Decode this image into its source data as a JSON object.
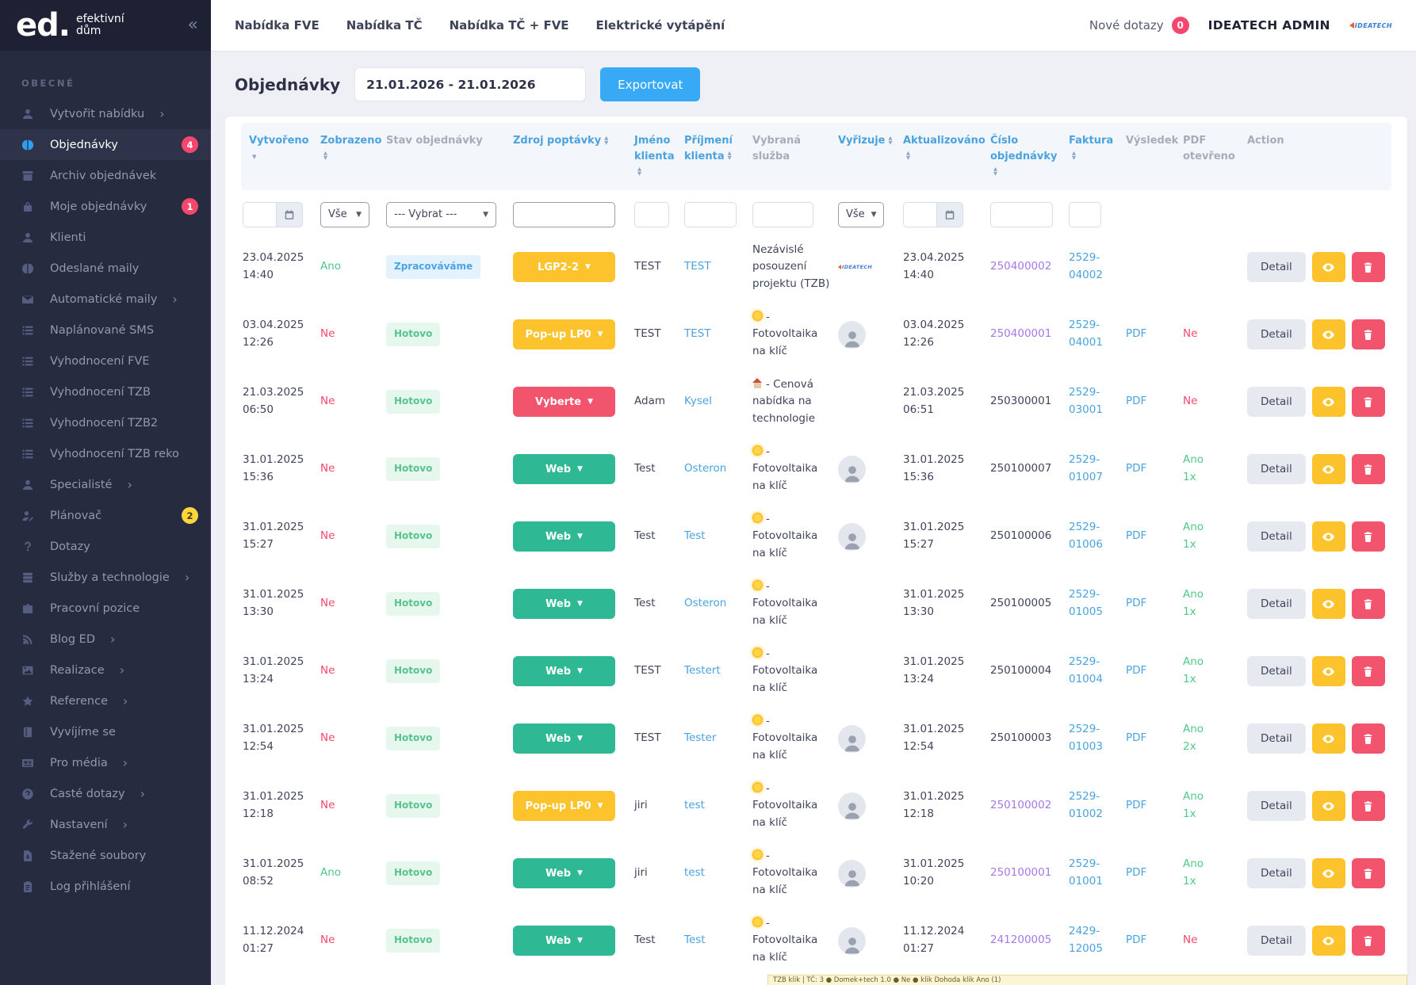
{
  "brand": {
    "logo_text": "ed.",
    "logo_sub1": "efektivní",
    "logo_sub2": "dům",
    "collapse_glyph": "«"
  },
  "colors": {
    "accent_blue": "#38a9f5",
    "link_blue": "#4aa3df",
    "purple_link": "#a478ea",
    "green": "#4fc88a",
    "red": "#f5476d",
    "yellow": "#fcc32d",
    "teal": "#2fb894",
    "sidebar_bg": "#272b3f",
    "badge_red": "#f5476d",
    "badge_yellow": "#ffd53e"
  },
  "sidebar": {
    "section_label": "OBECNÉ",
    "items": [
      {
        "label": "Vytvořit nabídku",
        "icon": "user-icon",
        "chevron": "›",
        "badge": "",
        "badge_class": "",
        "item_class": ""
      },
      {
        "label": "Objednávky",
        "icon": "orders-icon",
        "chevron": "",
        "badge": "4",
        "badge_class": "b-red",
        "item_class": "active"
      },
      {
        "label": "Archiv objednávek",
        "icon": "archive-icon",
        "chevron": "",
        "badge": "",
        "badge_class": "",
        "item_class": ""
      },
      {
        "label": "Moje objednávky",
        "icon": "bag-icon",
        "chevron": "",
        "badge": "1",
        "badge_class": "b-red",
        "item_class": ""
      },
      {
        "label": "Klienti",
        "icon": "user-icon",
        "chevron": "",
        "badge": "",
        "badge_class": "",
        "item_class": ""
      },
      {
        "label": "Odeslané maily",
        "icon": "orders-icon",
        "chevron": "",
        "badge": "",
        "badge_class": "",
        "item_class": ""
      },
      {
        "label": "Automatické maily",
        "icon": "envelope-icon",
        "chevron": "›",
        "badge": "",
        "badge_class": "",
        "item_class": ""
      },
      {
        "label": "Naplánované SMS",
        "icon": "list-icon",
        "chevron": "",
        "badge": "",
        "badge_class": "",
        "item_class": ""
      },
      {
        "label": "Vyhodnocení FVE",
        "icon": "list-icon",
        "chevron": "",
        "badge": "",
        "badge_class": "",
        "item_class": ""
      },
      {
        "label": "Vyhodnocení TZB",
        "icon": "list-icon",
        "chevron": "",
        "badge": "",
        "badge_class": "",
        "item_class": ""
      },
      {
        "label": "Vyhodnocení TZB2",
        "icon": "list-icon",
        "chevron": "",
        "badge": "",
        "badge_class": "",
        "item_class": ""
      },
      {
        "label": "Vyhodnocení TZB reko",
        "icon": "list-icon",
        "chevron": "",
        "badge": "",
        "badge_class": "",
        "item_class": ""
      },
      {
        "label": "Specialisté",
        "icon": "user-icon",
        "chevron": "›",
        "badge": "",
        "badge_class": "",
        "item_class": ""
      },
      {
        "label": "Plánovač",
        "icon": "user-edit-icon",
        "chevron": "",
        "badge": "2",
        "badge_class": "b-yellow",
        "item_class": ""
      },
      {
        "label": "Dotazy",
        "icon": "question-icon",
        "chevron": "",
        "badge": "",
        "badge_class": "",
        "item_class": ""
      },
      {
        "label": "Služby a technologie",
        "icon": "db-icon",
        "chevron": "›",
        "badge": "",
        "badge_class": "",
        "item_class": ""
      },
      {
        "label": "Pracovní pozice",
        "icon": "briefcase-icon",
        "chevron": "",
        "badge": "",
        "badge_class": "",
        "item_class": ""
      },
      {
        "label": "Blog ED",
        "icon": "blog-icon",
        "chevron": "›",
        "badge": "",
        "badge_class": "",
        "item_class": ""
      },
      {
        "label": "Realizace",
        "icon": "image-icon",
        "chevron": "›",
        "badge": "",
        "badge_class": "",
        "item_class": ""
      },
      {
        "label": "Reference",
        "icon": "star-icon",
        "chevron": "›",
        "badge": "",
        "badge_class": "",
        "item_class": ""
      },
      {
        "label": "Vyvíjíme se",
        "icon": "book-icon",
        "chevron": "",
        "badge": "",
        "badge_class": "",
        "item_class": ""
      },
      {
        "label": "Pro média",
        "icon": "news-icon",
        "chevron": "›",
        "badge": "",
        "badge_class": "",
        "item_class": ""
      },
      {
        "label": "Časté dotazy",
        "icon": "help-icon",
        "chevron": "›",
        "badge": "",
        "badge_class": "",
        "item_class": ""
      },
      {
        "label": "Nastavení",
        "icon": "wrench-icon",
        "chevron": "›",
        "badge": "",
        "badge_class": "",
        "item_class": ""
      },
      {
        "label": "Stažené soubory",
        "icon": "download-icon",
        "chevron": "",
        "badge": "",
        "badge_class": "",
        "item_class": ""
      },
      {
        "label": "Log přihlášení",
        "icon": "clipboard-icon",
        "chevron": "",
        "badge": "",
        "badge_class": "",
        "item_class": ""
      }
    ]
  },
  "topnav": {
    "tabs": [
      "Nabídka FVE",
      "Nabídka TČ",
      "Nabídka TČ + FVE",
      "Elektrické vytápění"
    ],
    "new_queries_label": "Nové dotazy",
    "new_queries_count": "0",
    "admin_label": "IDEATECH ADMIN",
    "brand_mark": "IDEATECH"
  },
  "toolbar": {
    "title": "Objednávky",
    "date_range": "21.01.2026 - 21.01.2026",
    "export_label": "Exportovat"
  },
  "table": {
    "columns": [
      {
        "label": "Vytvořeno",
        "head_class": "h-blue",
        "sort_class": "sort-desc"
      },
      {
        "label": "Zobrazeno",
        "head_class": "h-blue",
        "sort_class": "sort-both"
      },
      {
        "label": "Stav objednávky",
        "head_class": "h-gray",
        "sort_class": ""
      },
      {
        "label": "Zdroj poptávky",
        "head_class": "h-blue",
        "sort_class": "sort-both"
      },
      {
        "label": "Jméno klienta",
        "head_class": "h-blue",
        "sort_class": "sort-both"
      },
      {
        "label": "Příjmení klienta",
        "head_class": "h-blue",
        "sort_class": "sort-both"
      },
      {
        "label": "Vybraná služba",
        "head_class": "h-gray",
        "sort_class": ""
      },
      {
        "label": "Vyřizuje",
        "head_class": "h-blue",
        "sort_class": "sort-both"
      },
      {
        "label": "Aktualizováno",
        "head_class": "h-blue",
        "sort_class": "sort-both"
      },
      {
        "label": "Číslo objednávky",
        "head_class": "h-blue",
        "sort_class": "sort-both"
      },
      {
        "label": "Faktura",
        "head_class": "h-blue",
        "sort_class": "sort-both"
      },
      {
        "label": "Výsledek",
        "head_class": "h-gray",
        "sort_class": ""
      },
      {
        "label": "PDF otevřeno",
        "head_class": "h-gray",
        "sort_class": ""
      },
      {
        "label": "Action",
        "head_class": "h-gray",
        "sort_class": ""
      }
    ],
    "filters": {
      "zobrazeno": "Vše",
      "stav": "--- Vybrat ---",
      "vyrizuje": "Vše"
    },
    "vyrizuje_logo_text": "IDEATECH",
    "action_detail_label": "Detail",
    "rows": [
      {
        "vytvoreno": "23.04.2025 14:40",
        "zobrazeno": "Ano",
        "zobrazeno_class": "c-green",
        "stav": "Zpracováváme",
        "stav_class": "pill-blue",
        "zdroj": "LGP2-2",
        "zdroj_class": "btn-yellow",
        "jmeno": "TEST",
        "prijmeni": "TEST",
        "sluzba": "Nezávislé posouzení projektu (TZB)",
        "sluzba_icon_class": "",
        "vyrizuje_class": "vyrizuje-logo",
        "aktualizovano": "23.04.2025 14:40",
        "cislo": "250400002",
        "cislo_class": "c-purple",
        "faktura": "2529-04002",
        "pdf": "",
        "pdf_otevreno": "",
        "pdf_otevreno_class": ""
      },
      {
        "vytvoreno": "03.04.2025 12:26",
        "zobrazeno": "Ne",
        "zobrazeno_class": "c-red",
        "stav": "Hotovo",
        "stav_class": "pill-green",
        "zdroj": "Pop-up LP0",
        "zdroj_class": "btn-yellow",
        "jmeno": "TEST",
        "prijmeni": "TEST",
        "sluzba": "- Fotovoltaika na klíč",
        "sluzba_icon_class": "icon-sun",
        "vyrizuje_class": "vyrizuje-avatar",
        "aktualizovano": "03.04.2025 12:26",
        "cislo": "250400001",
        "cislo_class": "c-purple",
        "faktura": "2529-04001",
        "pdf": "PDF",
        "pdf_otevreno": "Ne",
        "pdf_otevreno_class": "c-red"
      },
      {
        "vytvoreno": "21.03.2025 06:50",
        "zobrazeno": "Ne",
        "zobrazeno_class": "c-red",
        "stav": "Hotovo",
        "stav_class": "pill-green",
        "zdroj": "Vyberte",
        "zdroj_class": "btn-red",
        "jmeno": "Adam",
        "prijmeni": "Kysel",
        "sluzba": "- Cenová nabídka na technologie",
        "sluzba_icon_class": "icon-house",
        "vyrizuje_class": "",
        "aktualizovano": "21.03.2025 06:51",
        "cislo": "250300001",
        "cislo_class": "",
        "faktura": "2529-03001",
        "pdf": "PDF",
        "pdf_otevreno": "Ne",
        "pdf_otevreno_class": "c-red"
      },
      {
        "vytvoreno": "31.01.2025 15:36",
        "zobrazeno": "Ne",
        "zobrazeno_class": "c-red",
        "stav": "Hotovo",
        "stav_class": "pill-green",
        "zdroj": "Web",
        "zdroj_class": "btn-green",
        "jmeno": "Test",
        "prijmeni": "Osteron",
        "sluzba": "- Fotovoltaika na klíč",
        "sluzba_icon_class": "icon-sun",
        "vyrizuje_class": "vyrizuje-avatar",
        "aktualizovano": "31.01.2025 15:36",
        "cislo": "250100007",
        "cislo_class": "",
        "faktura": "2529-01007",
        "pdf": "PDF",
        "pdf_otevreno": "Ano 1x",
        "pdf_otevreno_class": "c-green"
      },
      {
        "vytvoreno": "31.01.2025 15:27",
        "zobrazeno": "Ne",
        "zobrazeno_class": "c-red",
        "stav": "Hotovo",
        "stav_class": "pill-green",
        "zdroj": "Web",
        "zdroj_class": "btn-green",
        "jmeno": "Test",
        "prijmeni": "Test",
        "sluzba": "- Fotovoltaika na klíč",
        "sluzba_icon_class": "icon-sun",
        "vyrizuje_class": "vyrizuje-avatar",
        "aktualizovano": "31.01.2025 15:27",
        "cislo": "250100006",
        "cislo_class": "",
        "faktura": "2529-01006",
        "pdf": "PDF",
        "pdf_otevreno": "Ano 1x",
        "pdf_otevreno_class": "c-green"
      },
      {
        "vytvoreno": "31.01.2025 13:30",
        "zobrazeno": "Ne",
        "zobrazeno_class": "c-red",
        "stav": "Hotovo",
        "stav_class": "pill-green",
        "zdroj": "Web",
        "zdroj_class": "btn-green",
        "jmeno": "Test",
        "prijmeni": "Osteron",
        "sluzba": "- Fotovoltaika na klíč",
        "sluzba_icon_class": "icon-sun",
        "vyrizuje_class": "",
        "aktualizovano": "31.01.2025 13:30",
        "cislo": "250100005",
        "cislo_class": "",
        "faktura": "2529-01005",
        "pdf": "PDF",
        "pdf_otevreno": "Ano 1x",
        "pdf_otevreno_class": "c-green"
      },
      {
        "vytvoreno": "31.01.2025 13:24",
        "zobrazeno": "Ne",
        "zobrazeno_class": "c-red",
        "stav": "Hotovo",
        "stav_class": "pill-green",
        "zdroj": "Web",
        "zdroj_class": "btn-green",
        "jmeno": "TEST",
        "prijmeni": "Testert",
        "sluzba": "- Fotovoltaika na klíč",
        "sluzba_icon_class": "icon-sun",
        "vyrizuje_class": "",
        "aktualizovano": "31.01.2025 13:24",
        "cislo": "250100004",
        "cislo_class": "",
        "faktura": "2529-01004",
        "pdf": "PDF",
        "pdf_otevreno": "Ano 1x",
        "pdf_otevreno_class": "c-green"
      },
      {
        "vytvoreno": "31.01.2025 12:54",
        "zobrazeno": "Ne",
        "zobrazeno_class": "c-red",
        "stav": "Hotovo",
        "stav_class": "pill-green",
        "zdroj": "Web",
        "zdroj_class": "btn-green",
        "jmeno": "TEST",
        "prijmeni": "Tester",
        "sluzba": "- Fotovoltaika na klíč",
        "sluzba_icon_class": "icon-sun",
        "vyrizuje_class": "vyrizuje-avatar",
        "aktualizovano": "31.01.2025 12:54",
        "cislo": "250100003",
        "cislo_class": "",
        "faktura": "2529-01003",
        "pdf": "PDF",
        "pdf_otevreno": "Ano 2x",
        "pdf_otevreno_class": "c-green"
      },
      {
        "vytvoreno": "31.01.2025 12:18",
        "zobrazeno": "Ne",
        "zobrazeno_class": "c-red",
        "stav": "Hotovo",
        "stav_class": "pill-green",
        "zdroj": "Pop-up LP0",
        "zdroj_class": "btn-yellow",
        "jmeno": "jiri",
        "prijmeni": "test",
        "sluzba": "- Fotovoltaika na klíč",
        "sluzba_icon_class": "icon-sun",
        "vyrizuje_class": "vyrizuje-avatar",
        "aktualizovano": "31.01.2025 12:18",
        "cislo": "250100002",
        "cislo_class": "c-purple",
        "faktura": "2529-01002",
        "pdf": "PDF",
        "pdf_otevreno": "Ano 1x",
        "pdf_otevreno_class": "c-green"
      },
      {
        "vytvoreno": "31.01.2025 08:52",
        "zobrazeno": "Ano",
        "zobrazeno_class": "c-green",
        "stav": "Hotovo",
        "stav_class": "pill-green",
        "zdroj": "Web",
        "zdroj_class": "btn-green",
        "jmeno": "jiri",
        "prijmeni": "test",
        "sluzba": "- Fotovoltaika na klíč",
        "sluzba_icon_class": "icon-sun",
        "vyrizuje_class": "vyrizuje-avatar",
        "aktualizovano": "31.01.2025 10:20",
        "cislo": "250100001",
        "cislo_class": "c-purple",
        "faktura": "2529-01001",
        "pdf": "PDF",
        "pdf_otevreno": "Ano 1x",
        "pdf_otevreno_class": "c-green"
      },
      {
        "vytvoreno": "11.12.2024 01:27",
        "zobrazeno": "Ne",
        "zobrazeno_class": "c-red",
        "stav": "Hotovo",
        "stav_class": "pill-green",
        "zdroj": "Web",
        "zdroj_class": "btn-green",
        "jmeno": "Test",
        "prijmeni": "Test",
        "sluzba": "- Fotovoltaika na klíč",
        "sluzba_icon_class": "icon-sun",
        "vyrizuje_class": "vyrizuje-avatar",
        "aktualizovano": "11.12.2024 01:27",
        "cislo": "241200005",
        "cislo_class": "c-purple",
        "faktura": "2429-12005",
        "pdf": "PDF",
        "pdf_otevreno": "Ne",
        "pdf_otevreno_class": "c-red"
      }
    ]
  },
  "footer": {
    "ticker_text": "TZB klik | TČ: 3 ● Domek+tech 1.0 ● Ne ● klik Dohoda klik Ano (1)"
  }
}
